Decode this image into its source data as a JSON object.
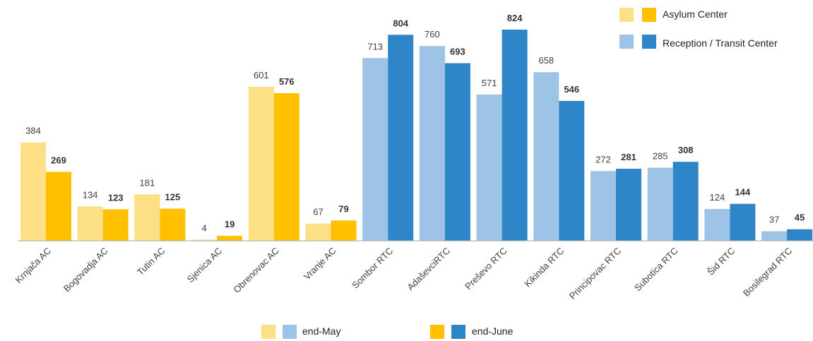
{
  "chart_data": {
    "type": "bar",
    "categories": [
      "Krnjača AC",
      "Bogovadja AC",
      "Tutin AC",
      "Sjenica AC",
      "Obrenovac AC",
      "Vranje AC",
      "Sombor RTC",
      "AdaševciRTC",
      "Preševo RTC",
      "Kikinda RTC",
      "Principovac RTC",
      "Subotica RTC",
      "Šid RTC",
      "Bosilegrad RTC"
    ],
    "center_type": [
      "asylum",
      "asylum",
      "asylum",
      "asylum",
      "asylum",
      "asylum",
      "rtc",
      "rtc",
      "rtc",
      "rtc",
      "rtc",
      "rtc",
      "rtc",
      "rtc"
    ],
    "series": [
      {
        "name": "end-May",
        "values": [
          384,
          134,
          181,
          4,
          601,
          67,
          713,
          760,
          571,
          658,
          272,
          285,
          124,
          37
        ]
      },
      {
        "name": "end-June",
        "values": [
          269,
          123,
          125,
          19,
          576,
          79,
          804,
          693,
          824,
          546,
          281,
          308,
          144,
          45
        ]
      }
    ],
    "ylim": [
      0,
      900
    ],
    "grid": false,
    "colors": {
      "asylum_may": "#FDDF86",
      "asylum_june": "#FFC000",
      "rtc_may": "#9DC3E6",
      "rtc_june": "#2E86C8",
      "axis": "#A6A6A6"
    },
    "legend_top": [
      {
        "label": "Asylum Center",
        "type": "asylum"
      },
      {
        "label": "Reception / Transit Center",
        "type": "rtc"
      }
    ],
    "legend_bottom": [
      {
        "label": "end-May",
        "series": 0
      },
      {
        "label": "end-June",
        "series": 1
      }
    ]
  }
}
